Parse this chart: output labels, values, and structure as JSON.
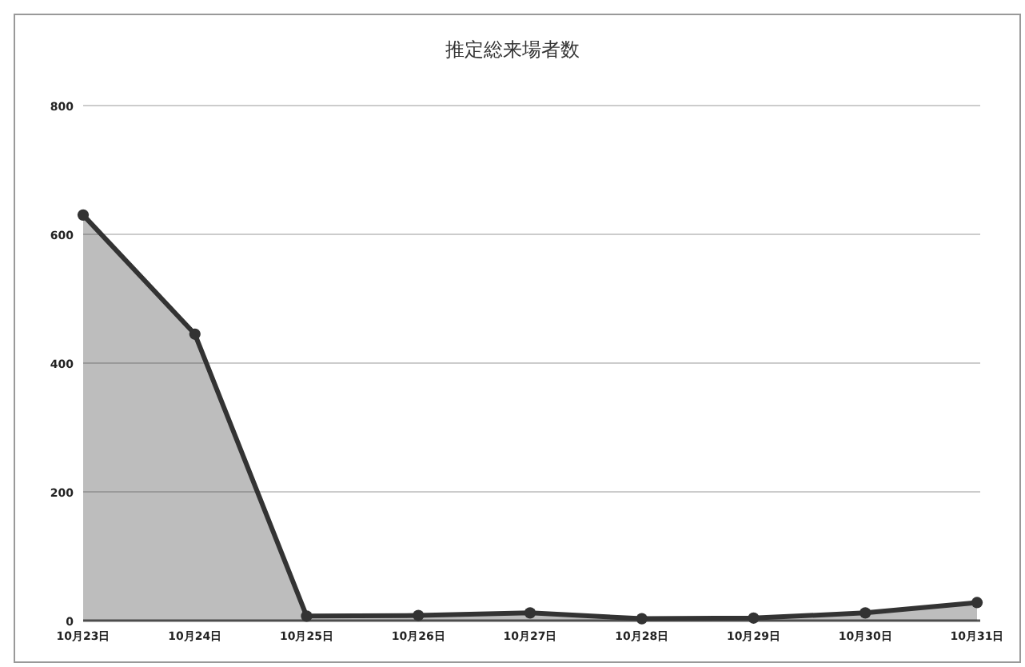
{
  "chart_data": {
    "type": "area",
    "title": "推定総来場者数",
    "categories": [
      "10月23日",
      "10月24日",
      "10月25日",
      "10月26日",
      "10月27日",
      "10月28日",
      "10月29日",
      "10月30日",
      "10月31日"
    ],
    "series": [
      {
        "color": "#333333",
        "values": [
          630,
          445,
          7,
          8,
          12,
          3,
          4,
          12,
          28
        ]
      }
    ],
    "ylim": [
      0,
      800
    ],
    "yticks": [
      0,
      200,
      400,
      600,
      800
    ],
    "grid": "y",
    "marker": "circle",
    "line_style": "solid"
  }
}
